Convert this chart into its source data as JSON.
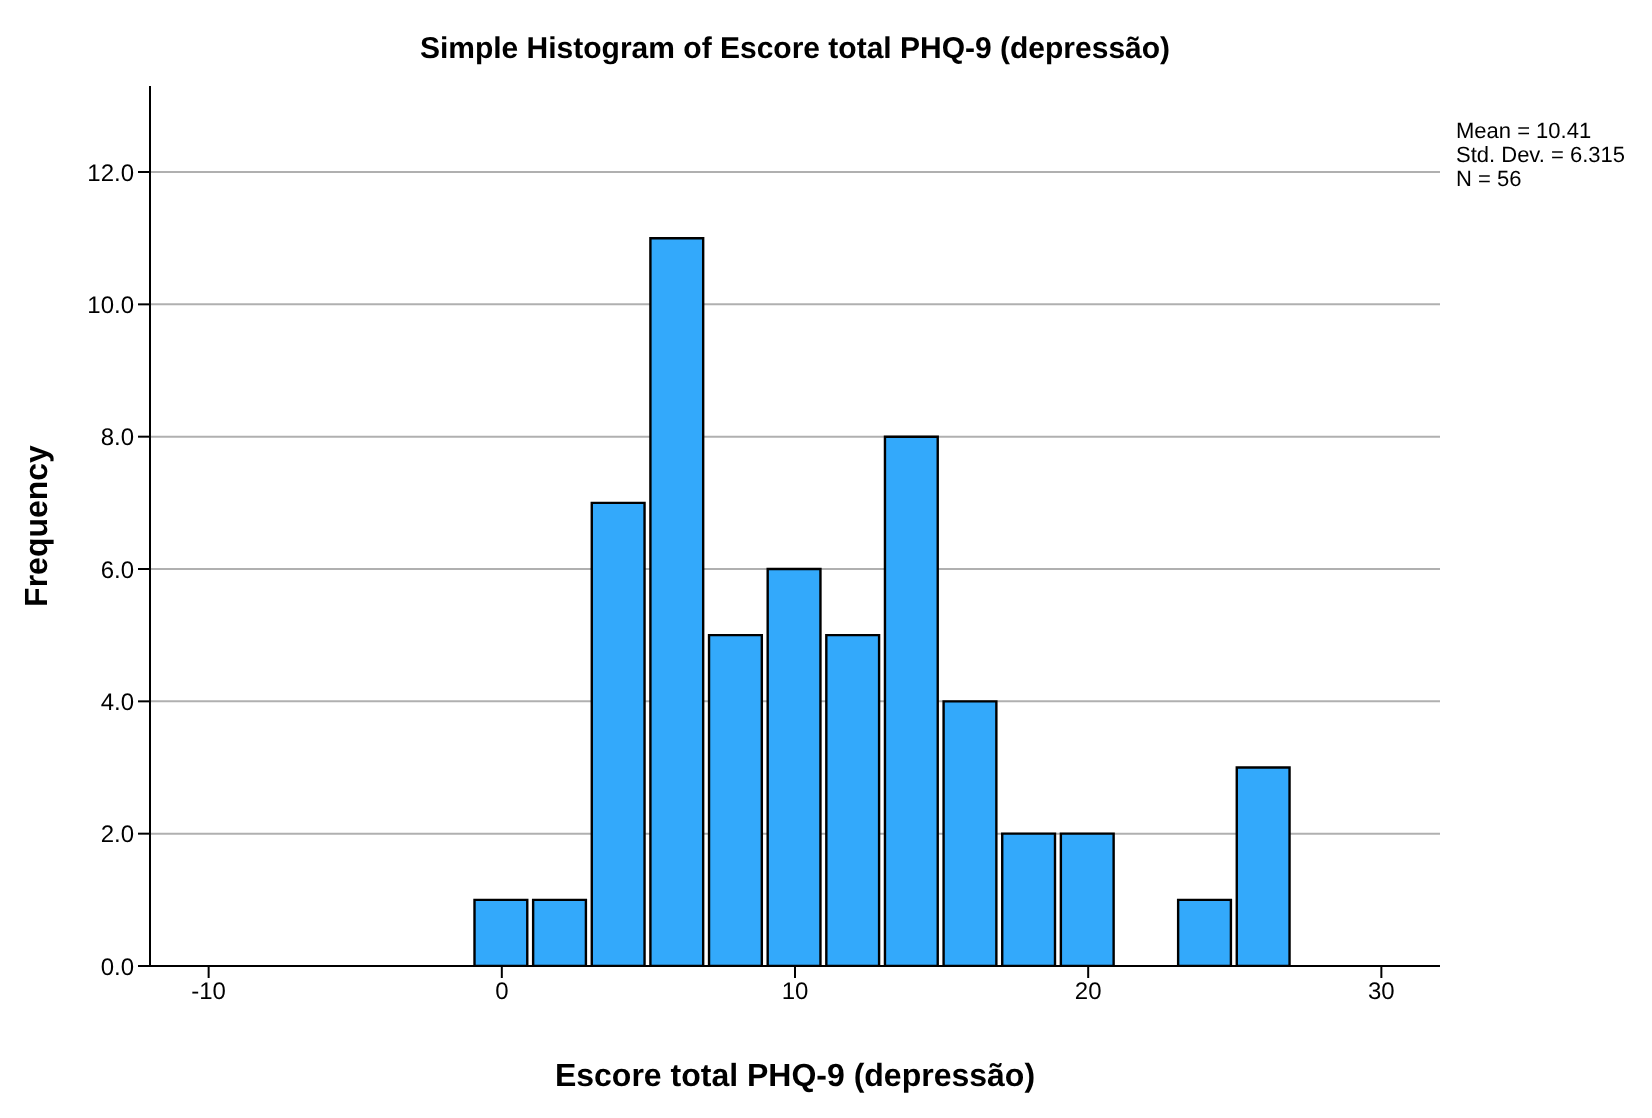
{
  "chart_data": {
    "type": "histogram",
    "title": "Simple Histogram of Escore total PHQ-9 (depressão)",
    "xlabel": "Escore total PHQ-9 (depressão)",
    "ylabel": "Frequency",
    "bins": [
      -1,
      1,
      3,
      5,
      7,
      9,
      11,
      13,
      15,
      17,
      19,
      21,
      23,
      25,
      27
    ],
    "values": [
      1,
      1,
      7,
      11,
      5,
      6,
      5,
      8,
      4,
      2,
      2,
      0,
      1,
      3
    ],
    "color": "#33a9fb",
    "xlim": [
      -12,
      32
    ],
    "xticks": [
      -10,
      0,
      10,
      20,
      30
    ],
    "ylim": [
      0,
      13.3
    ],
    "yticks": [
      {
        "value": 0,
        "label": "0.0"
      },
      {
        "value": 2,
        "label": "2.0"
      },
      {
        "value": 4,
        "label": "4.0"
      },
      {
        "value": 6,
        "label": "6.0"
      },
      {
        "value": 8,
        "label": "8.0"
      },
      {
        "value": 10,
        "label": "10.0"
      },
      {
        "value": 12,
        "label": "12.0"
      }
    ],
    "grid": "y",
    "annotations": [
      "Mean = 10.41",
      "Std. Dev. = 6.315",
      "N = 56"
    ]
  }
}
